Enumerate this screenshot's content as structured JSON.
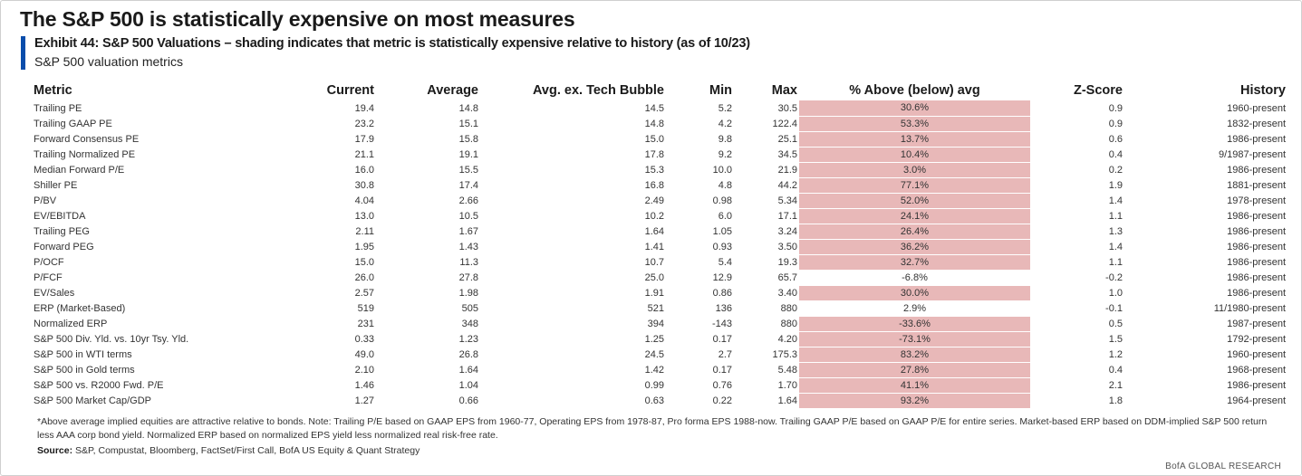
{
  "title": "The S&P 500 is statistically expensive on most measures",
  "exhibit": "Exhibit 44: S&P 500 Valuations – shading indicates that metric is statistically expensive relative to history (as of 10/23)",
  "subtitle": "S&P 500 valuation metrics",
  "columns": {
    "metric": "Metric",
    "current": "Current",
    "average": "Average",
    "avg_ex_tech": "Avg. ex. Tech Bubble",
    "min": "Min",
    "max": "Max",
    "pct": "% Above (below) avg",
    "zscore": "Z-Score",
    "history": "History"
  },
  "shade_color": "#e8b8b8",
  "accent_color": "#0a4dab",
  "rows": [
    {
      "metric": "Trailing PE",
      "current": "19.4",
      "average": "14.8",
      "avg_ex_tech": "14.5",
      "min": "5.2",
      "max": "30.5",
      "pct": "30.6%",
      "zscore": "0.9",
      "history": "1960-present",
      "shaded": true
    },
    {
      "metric": "Trailing GAAP PE",
      "current": "23.2",
      "average": "15.1",
      "avg_ex_tech": "14.8",
      "min": "4.2",
      "max": "122.4",
      "pct": "53.3%",
      "zscore": "0.9",
      "history": "1832-present",
      "shaded": true
    },
    {
      "metric": "Forward Consensus  PE",
      "current": "17.9",
      "average": "15.8",
      "avg_ex_tech": "15.0",
      "min": "9.8",
      "max": "25.1",
      "pct": "13.7%",
      "zscore": "0.6",
      "history": "1986-present",
      "shaded": true
    },
    {
      "metric": "Trailing Normalized PE",
      "current": "21.1",
      "average": "19.1",
      "avg_ex_tech": "17.8",
      "min": "9.2",
      "max": "34.5",
      "pct": "10.4%",
      "zscore": "0.4",
      "history": "9/1987-present",
      "shaded": true
    },
    {
      "metric": "Median Forward P/E",
      "current": "16.0",
      "average": "15.5",
      "avg_ex_tech": "15.3",
      "min": "10.0",
      "max": "21.9",
      "pct": "3.0%",
      "zscore": "0.2",
      "history": "1986-present",
      "shaded": true
    },
    {
      "metric": "Shiller PE",
      "current": "30.8",
      "average": "17.4",
      "avg_ex_tech": "16.8",
      "min": "4.8",
      "max": "44.2",
      "pct": "77.1%",
      "zscore": "1.9",
      "history": "1881-present",
      "shaded": true
    },
    {
      "metric": "P/BV",
      "current": "4.04",
      "average": "2.66",
      "avg_ex_tech": "2.49",
      "min": "0.98",
      "max": "5.34",
      "pct": "52.0%",
      "zscore": "1.4",
      "history": "1978-present",
      "shaded": true
    },
    {
      "metric": "EV/EBITDA",
      "current": "13.0",
      "average": "10.5",
      "avg_ex_tech": "10.2",
      "min": "6.0",
      "max": "17.1",
      "pct": "24.1%",
      "zscore": "1.1",
      "history": "1986-present",
      "shaded": true
    },
    {
      "metric": "Trailing PEG",
      "current": "2.11",
      "average": "1.67",
      "avg_ex_tech": "1.64",
      "min": "1.05",
      "max": "3.24",
      "pct": "26.4%",
      "zscore": "1.3",
      "history": "1986-present",
      "shaded": true
    },
    {
      "metric": "Forward PEG",
      "current": "1.95",
      "average": "1.43",
      "avg_ex_tech": "1.41",
      "min": "0.93",
      "max": "3.50",
      "pct": "36.2%",
      "zscore": "1.4",
      "history": "1986-present",
      "shaded": true
    },
    {
      "metric": "P/OCF",
      "current": "15.0",
      "average": "11.3",
      "avg_ex_tech": "10.7",
      "min": "5.4",
      "max": "19.3",
      "pct": "32.7%",
      "zscore": "1.1",
      "history": "1986-present",
      "shaded": true
    },
    {
      "metric": "P/FCF",
      "current": "26.0",
      "average": "27.8",
      "avg_ex_tech": "25.0",
      "min": "12.9",
      "max": "65.7",
      "pct": "-6.8%",
      "zscore": "-0.2",
      "history": "1986-present",
      "shaded": false
    },
    {
      "metric": "EV/Sales",
      "current": "2.57",
      "average": "1.98",
      "avg_ex_tech": "1.91",
      "min": "0.86",
      "max": "3.40",
      "pct": "30.0%",
      "zscore": "1.0",
      "history": "1986-present",
      "shaded": true
    },
    {
      "metric": "ERP (Market-Based)",
      "current": "519",
      "average": "505",
      "avg_ex_tech": "521",
      "min": "136",
      "max": "880",
      "pct": "2.9%",
      "zscore": "-0.1",
      "history": "11/1980-present",
      "shaded": false
    },
    {
      "metric": "Normalized ERP",
      "current": "231",
      "average": "348",
      "avg_ex_tech": "394",
      "min": "-143",
      "max": "880",
      "pct": "-33.6%",
      "zscore": "0.5",
      "history": "1987-present",
      "shaded": true
    },
    {
      "metric": "S&P 500  Div. Yld. vs. 10yr Tsy. Yld.",
      "current": "0.33",
      "average": "1.23",
      "avg_ex_tech": "1.25",
      "min": "0.17",
      "max": "4.20",
      "pct": "-73.1%",
      "zscore": "1.5",
      "history": "1792-present",
      "shaded": true
    },
    {
      "metric": "S&P 500  in WTI terms",
      "current": "49.0",
      "average": "26.8",
      "avg_ex_tech": "24.5",
      "min": "2.7",
      "max": "175.3",
      "pct": "83.2%",
      "zscore": "1.2",
      "history": "1960-present",
      "shaded": true
    },
    {
      "metric": "S&P 500  in Gold terms",
      "current": "2.10",
      "average": "1.64",
      "avg_ex_tech": "1.42",
      "min": "0.17",
      "max": "5.48",
      "pct": "27.8%",
      "zscore": "0.4",
      "history": "1968-present",
      "shaded": true
    },
    {
      "metric": "S&P 500  vs. R2000  Fwd. P/E",
      "current": "1.46",
      "average": "1.04",
      "avg_ex_tech": "0.99",
      "min": "0.76",
      "max": "1.70",
      "pct": "41.1%",
      "zscore": "2.1",
      "history": "1986-present",
      "shaded": true
    },
    {
      "metric": "S&P 500  Market Cap/GDP",
      "current": "1.27",
      "average": "0.66",
      "avg_ex_tech": "0.63",
      "min": "0.22",
      "max": "1.64",
      "pct": "93.2%",
      "zscore": "1.8",
      "history": "1964-present",
      "shaded": true
    }
  ],
  "notes": "*Above average implied equities are attractive relative to bonds.  Note: Trailing P/E based on GAAP EPS from 1960-77, Operating EPS from 1978-87, Pro forma EPS 1988-now.  Trailing GAAP P/E based on GAAP P/E for entire series. Market-based ERP based on DDM-implied S&P 500 return less AAA corp bond yield. Normalized ERP based on normalized EPS yield less normalized real risk-free rate.",
  "source_label": "Source:",
  "source_text": " S&P, Compustat, Bloomberg, FactSet/First Call, BofA US Equity & Quant Strategy",
  "brand": "BofA GLOBAL RESEARCH"
}
